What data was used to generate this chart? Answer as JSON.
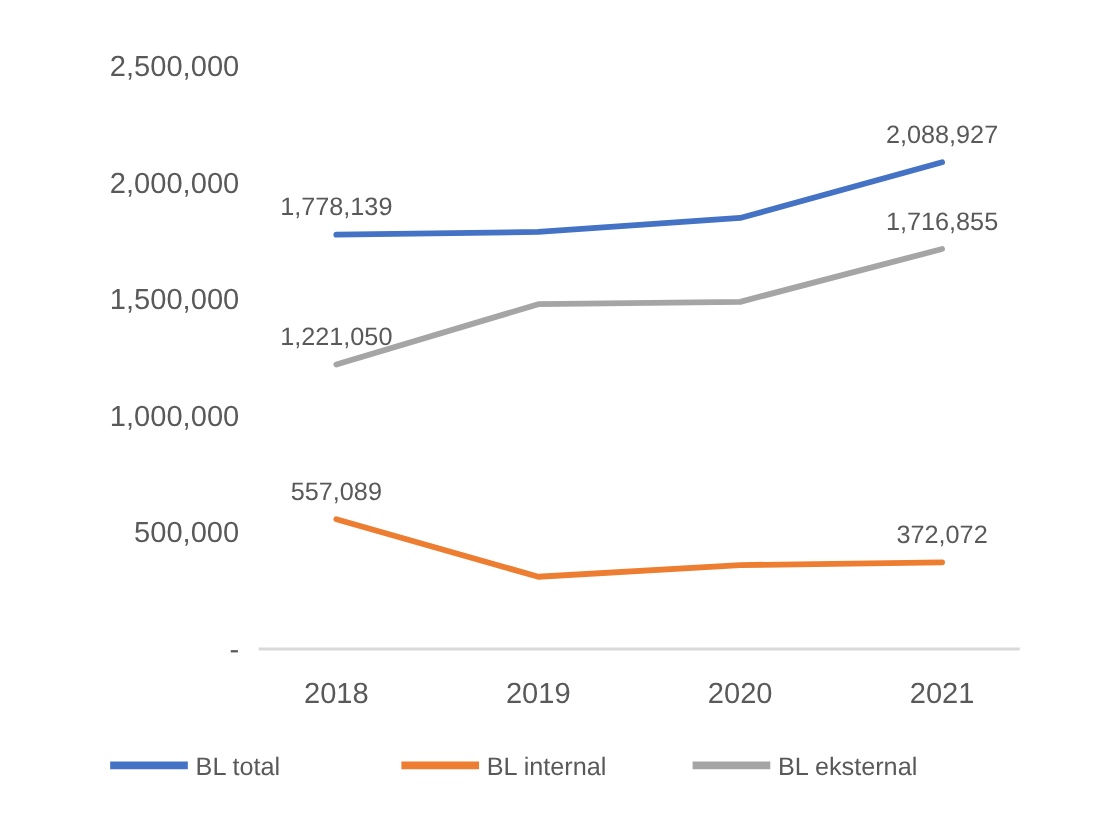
{
  "chart_data": {
    "type": "line",
    "categories": [
      "2018",
      "2019",
      "2020",
      "2021"
    ],
    "series": [
      {
        "name": "BL total",
        "color": "#4472c4",
        "values": [
          1778139,
          1790000,
          1850000,
          2088927
        ],
        "value_labels": [
          "1,778,139",
          null,
          null,
          "2,088,927"
        ]
      },
      {
        "name": "BL internal",
        "color": "#ed7d31",
        "values": [
          557089,
          310000,
          360000,
          372072
        ],
        "value_labels": [
          "557,089",
          null,
          null,
          "372,072"
        ]
      },
      {
        "name": "BL eksternal",
        "color": "#a5a5a5",
        "values": [
          1221050,
          1480000,
          1490000,
          1716855
        ],
        "value_labels": [
          "1,221,050",
          null,
          null,
          "1,716,855"
        ]
      }
    ],
    "ylim": [
      0,
      2500000
    ],
    "yticks": [
      {
        "value": 0,
        "label": "-"
      },
      {
        "value": 500000,
        "label": "500,000"
      },
      {
        "value": 1000000,
        "label": "1,000,000"
      },
      {
        "value": 1500000,
        "label": "1,500,000"
      },
      {
        "value": 2000000,
        "label": "2,000,000"
      },
      {
        "value": 2500000,
        "label": "2,500,000"
      }
    ],
    "grid": false,
    "legend": "bottom",
    "marker": "none",
    "line_style": "solid"
  }
}
